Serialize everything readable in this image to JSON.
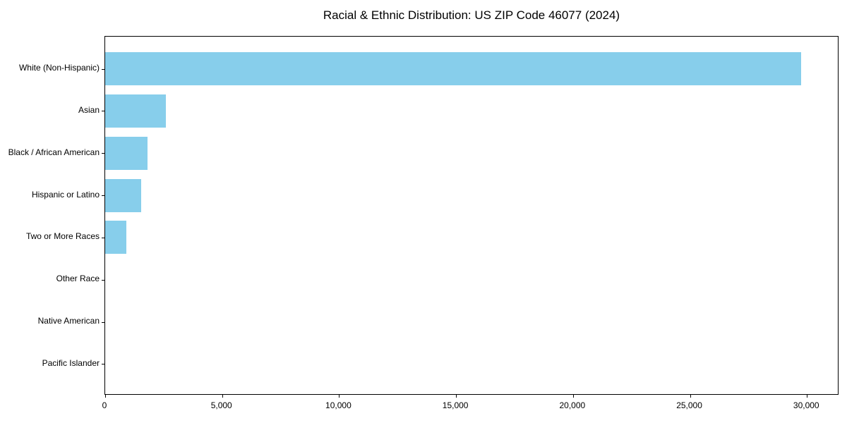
{
  "chart_data": {
    "type": "bar",
    "orientation": "horizontal",
    "title": "Racial & Ethnic Distribution: US ZIP Code 46077 (2024)",
    "categories": [
      "White (Non-Hispanic)",
      "Asian",
      "Black / African American",
      "Hispanic or Latino",
      "Two or More Races",
      "Other Race",
      "Native American",
      "Pacific Islander"
    ],
    "values": [
      29800,
      2600,
      1800,
      1550,
      900,
      0,
      0,
      0
    ],
    "xlabel": "",
    "ylabel": "",
    "xlim": [
      0,
      31380
    ],
    "x_ticks": [
      0,
      5000,
      10000,
      15000,
      20000,
      25000,
      30000
    ],
    "x_tick_labels": [
      "0",
      "5,000",
      "10,000",
      "15,000",
      "20,000",
      "25,000",
      "30,000"
    ],
    "grid": false,
    "legend": null,
    "bar_color": "#87CEEB",
    "axis_color": "#000000",
    "background_color": "#ffffff"
  }
}
